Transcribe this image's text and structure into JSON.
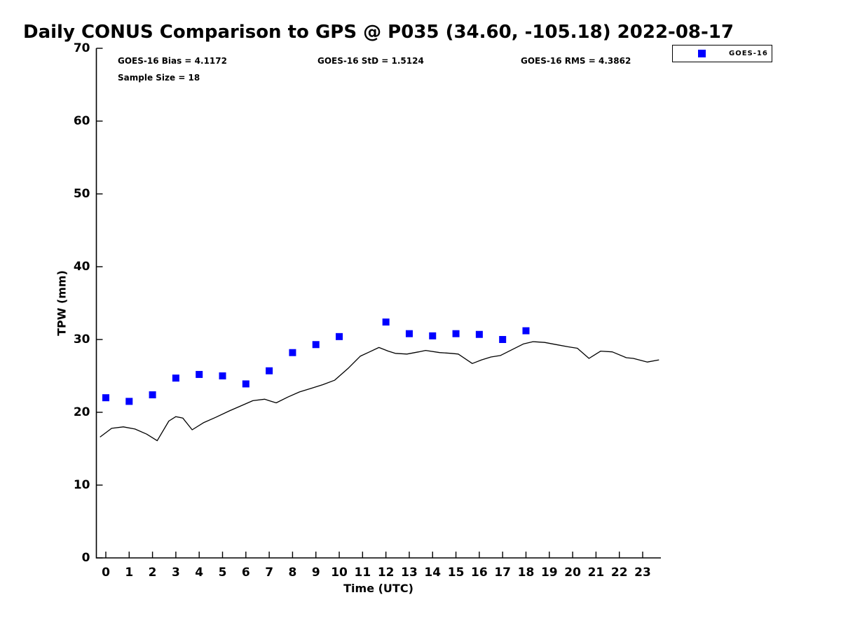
{
  "title": "Daily CONUS Comparison to GPS @ P035 (34.60, -105.18) 2022-08-17",
  "stats": {
    "bias": "GOES-16 Bias = 4.1172",
    "std": "GOES-16 StD = 1.5124",
    "rms": "GOES-16 RMS = 4.3862",
    "sample": "Sample Size = 18"
  },
  "legend": {
    "entries": [
      {
        "label": "GOES-16",
        "marker": "square",
        "color": "#0000ff"
      }
    ]
  },
  "chart_data": {
    "type": "scatter",
    "title": "Daily CONUS Comparison to GPS @ P035 (34.60, -105.18) 2022-08-17",
    "xlabel": "Time (UTC)",
    "ylabel": "TPW (mm)",
    "xlim": [
      -0.405,
      23.78
    ],
    "ylim": [
      0,
      70
    ],
    "xticks": [
      0,
      1,
      2,
      3,
      4,
      5,
      6,
      7,
      8,
      9,
      10,
      11,
      12,
      13,
      14,
      15,
      16,
      17,
      18,
      19,
      20,
      21,
      22,
      23
    ],
    "yticks": [
      0,
      10,
      20,
      30,
      40,
      50,
      60,
      70
    ],
    "grid": false,
    "legend_position": "top-right",
    "series": [
      {
        "name": "GOES-16",
        "type": "scatter",
        "marker": "square",
        "color": "#0000ff",
        "x": [
          0,
          1,
          2,
          3,
          4,
          5,
          6,
          7,
          8,
          9,
          10,
          12,
          13,
          14,
          15,
          16,
          17,
          18
        ],
        "y": [
          22.0,
          21.5,
          22.4,
          24.7,
          25.2,
          25.0,
          23.9,
          25.7,
          28.2,
          29.3,
          30.4,
          32.4,
          30.8,
          30.5,
          30.8,
          30.7,
          30.0,
          31.2
        ]
      },
      {
        "name": "GPS",
        "type": "line",
        "color": "#000000",
        "x": [
          -0.25,
          0.25,
          0.75,
          1.25,
          1.75,
          2.2,
          2.7,
          3.0,
          3.3,
          3.7,
          4.2,
          4.7,
          5.3,
          5.8,
          6.3,
          6.8,
          7.3,
          7.8,
          8.3,
          8.8,
          9.3,
          9.8,
          10.4,
          10.9,
          11.3,
          11.7,
          12.1,
          12.4,
          12.9,
          13.4,
          13.7,
          14.3,
          14.8,
          15.1,
          15.7,
          16.1,
          16.5,
          16.9,
          17.4,
          17.9,
          18.3,
          18.8,
          19.3,
          19.8,
          20.2,
          20.7,
          21.2,
          21.7,
          22.3,
          22.6,
          23.2,
          23.7
        ],
        "y": [
          16.6,
          17.8,
          18.0,
          17.7,
          17.0,
          16.1,
          18.8,
          19.4,
          19.2,
          17.6,
          18.6,
          19.3,
          20.2,
          20.9,
          21.6,
          21.8,
          21.3,
          22.1,
          22.8,
          23.3,
          23.8,
          24.4,
          26.1,
          27.7,
          28.3,
          28.9,
          28.4,
          28.1,
          28.0,
          28.3,
          28.5,
          28.2,
          28.1,
          28.0,
          26.7,
          27.2,
          27.6,
          27.8,
          28.6,
          29.4,
          29.7,
          29.6,
          29.3,
          29.0,
          28.8,
          27.4,
          28.4,
          28.3,
          27.5,
          27.4,
          26.9,
          27.2
        ]
      }
    ]
  }
}
